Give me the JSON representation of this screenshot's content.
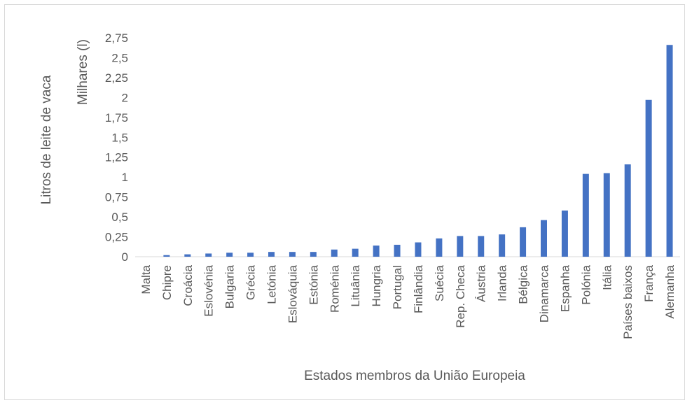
{
  "chart_data": {
    "type": "bar",
    "title": "",
    "xlabel": "Estados membros da União Europeia",
    "ylabel": "Litros de leite de vaca",
    "y_unit_label": "Milhares (l)",
    "ylim": [
      0,
      2.75
    ],
    "yticks": [
      "0",
      "0,25",
      "0,5",
      "0,75",
      "1",
      "1,25",
      "1,5",
      "1,75",
      "2",
      "2,25",
      "2,5",
      "2,75"
    ],
    "grid": false,
    "bar_color": "#4472c4",
    "categories": [
      "Malta",
      "Chipre",
      "Croácia",
      "Eslovénia",
      "Bulgaria",
      "Grécia",
      "Letónia",
      "Eslováquia",
      "Estónia",
      "Roménia",
      "Lituânia",
      "Hungria",
      "Portugal",
      "Finlândia",
      "Suécia",
      "Rep. Checa",
      "Áustria",
      "Irlanda",
      "Bélgica",
      "Dinamarca",
      "Espanha",
      "Polónia",
      "Itália",
      "Países baixos",
      "França",
      "Alemanha"
    ],
    "values": [
      0.0,
      0.02,
      0.03,
      0.04,
      0.05,
      0.05,
      0.06,
      0.06,
      0.06,
      0.09,
      0.1,
      0.14,
      0.15,
      0.18,
      0.23,
      0.26,
      0.26,
      0.28,
      0.37,
      0.46,
      0.58,
      1.04,
      1.05,
      1.16,
      1.97,
      2.66
    ]
  }
}
